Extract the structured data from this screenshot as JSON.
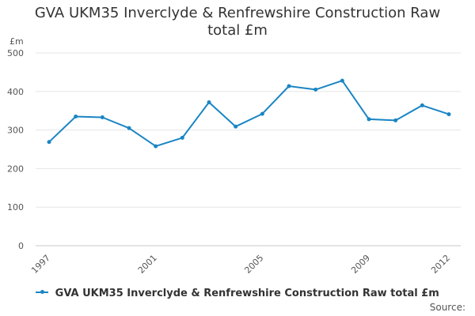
{
  "chart_data": {
    "type": "line",
    "title": "GVA UKM35 Inverclyde & Renfrewshire Construction Raw total £m",
    "ylabel": "£m",
    "xlabel": "",
    "ylim": [
      0,
      500
    ],
    "xlim": [
      1997,
      2012
    ],
    "grid": true,
    "legend_position": "bottom",
    "y_ticks": [
      0,
      100,
      200,
      300,
      400,
      500
    ],
    "x_ticks": [
      "1997",
      "2001",
      "2005",
      "2009",
      "2012"
    ],
    "series": [
      {
        "name": "GVA UKM35 Inverclyde & Renfrewshire Construction Raw total £m",
        "color": "#1a85c4",
        "x": [
          1997,
          1998,
          1999,
          2000,
          2001,
          2002,
          2003,
          2004,
          2005,
          2006,
          2007,
          2008,
          2009,
          2010,
          2011,
          2012
        ],
        "values": [
          269,
          335,
          333,
          305,
          258,
          280,
          372,
          309,
          342,
          414,
          405,
          428,
          328,
          325,
          364,
          341
        ]
      }
    ]
  },
  "source_label": "Source:"
}
